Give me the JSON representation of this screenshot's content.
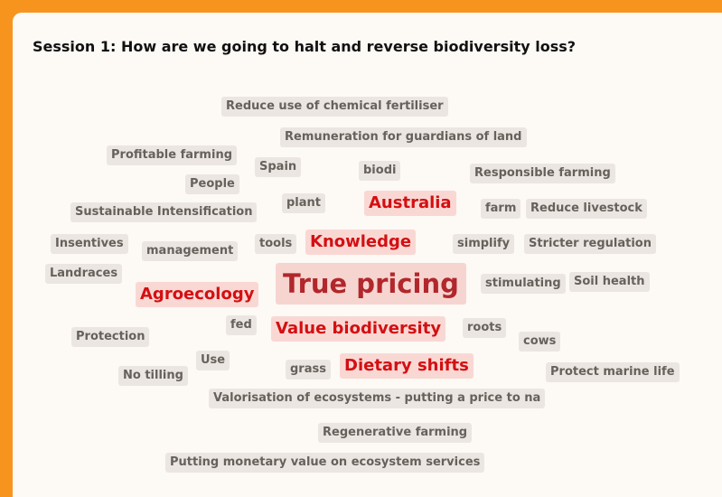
{
  "title": "Session 1: How are we going to halt and reverse biodiversity loss?",
  "words": [
    "Reduce use of chemical fertiliser",
    "Remuneration for guardians of land",
    "Profitable farming",
    "Spain",
    "biodi",
    "Responsible farming",
    "People",
    "plant",
    "Australia",
    "farm",
    "Reduce livestock",
    "Sustainable Intensification",
    "Insentives",
    "management",
    "tools",
    "Knowledge",
    "simplify",
    "Stricter regulation",
    "Landraces",
    "True pricing",
    "stimulating",
    "Soil health",
    "Agroecology",
    "fed",
    "Value biodiversity",
    "roots",
    "Protection",
    "cows",
    "Use",
    "No tilling",
    "grass",
    "Dietary shifts",
    "Protect marine life",
    "Valorisation of ecosystems - putting a price to na",
    "Regenerative farming",
    "Putting monetary value on ecosystem services"
  ]
}
